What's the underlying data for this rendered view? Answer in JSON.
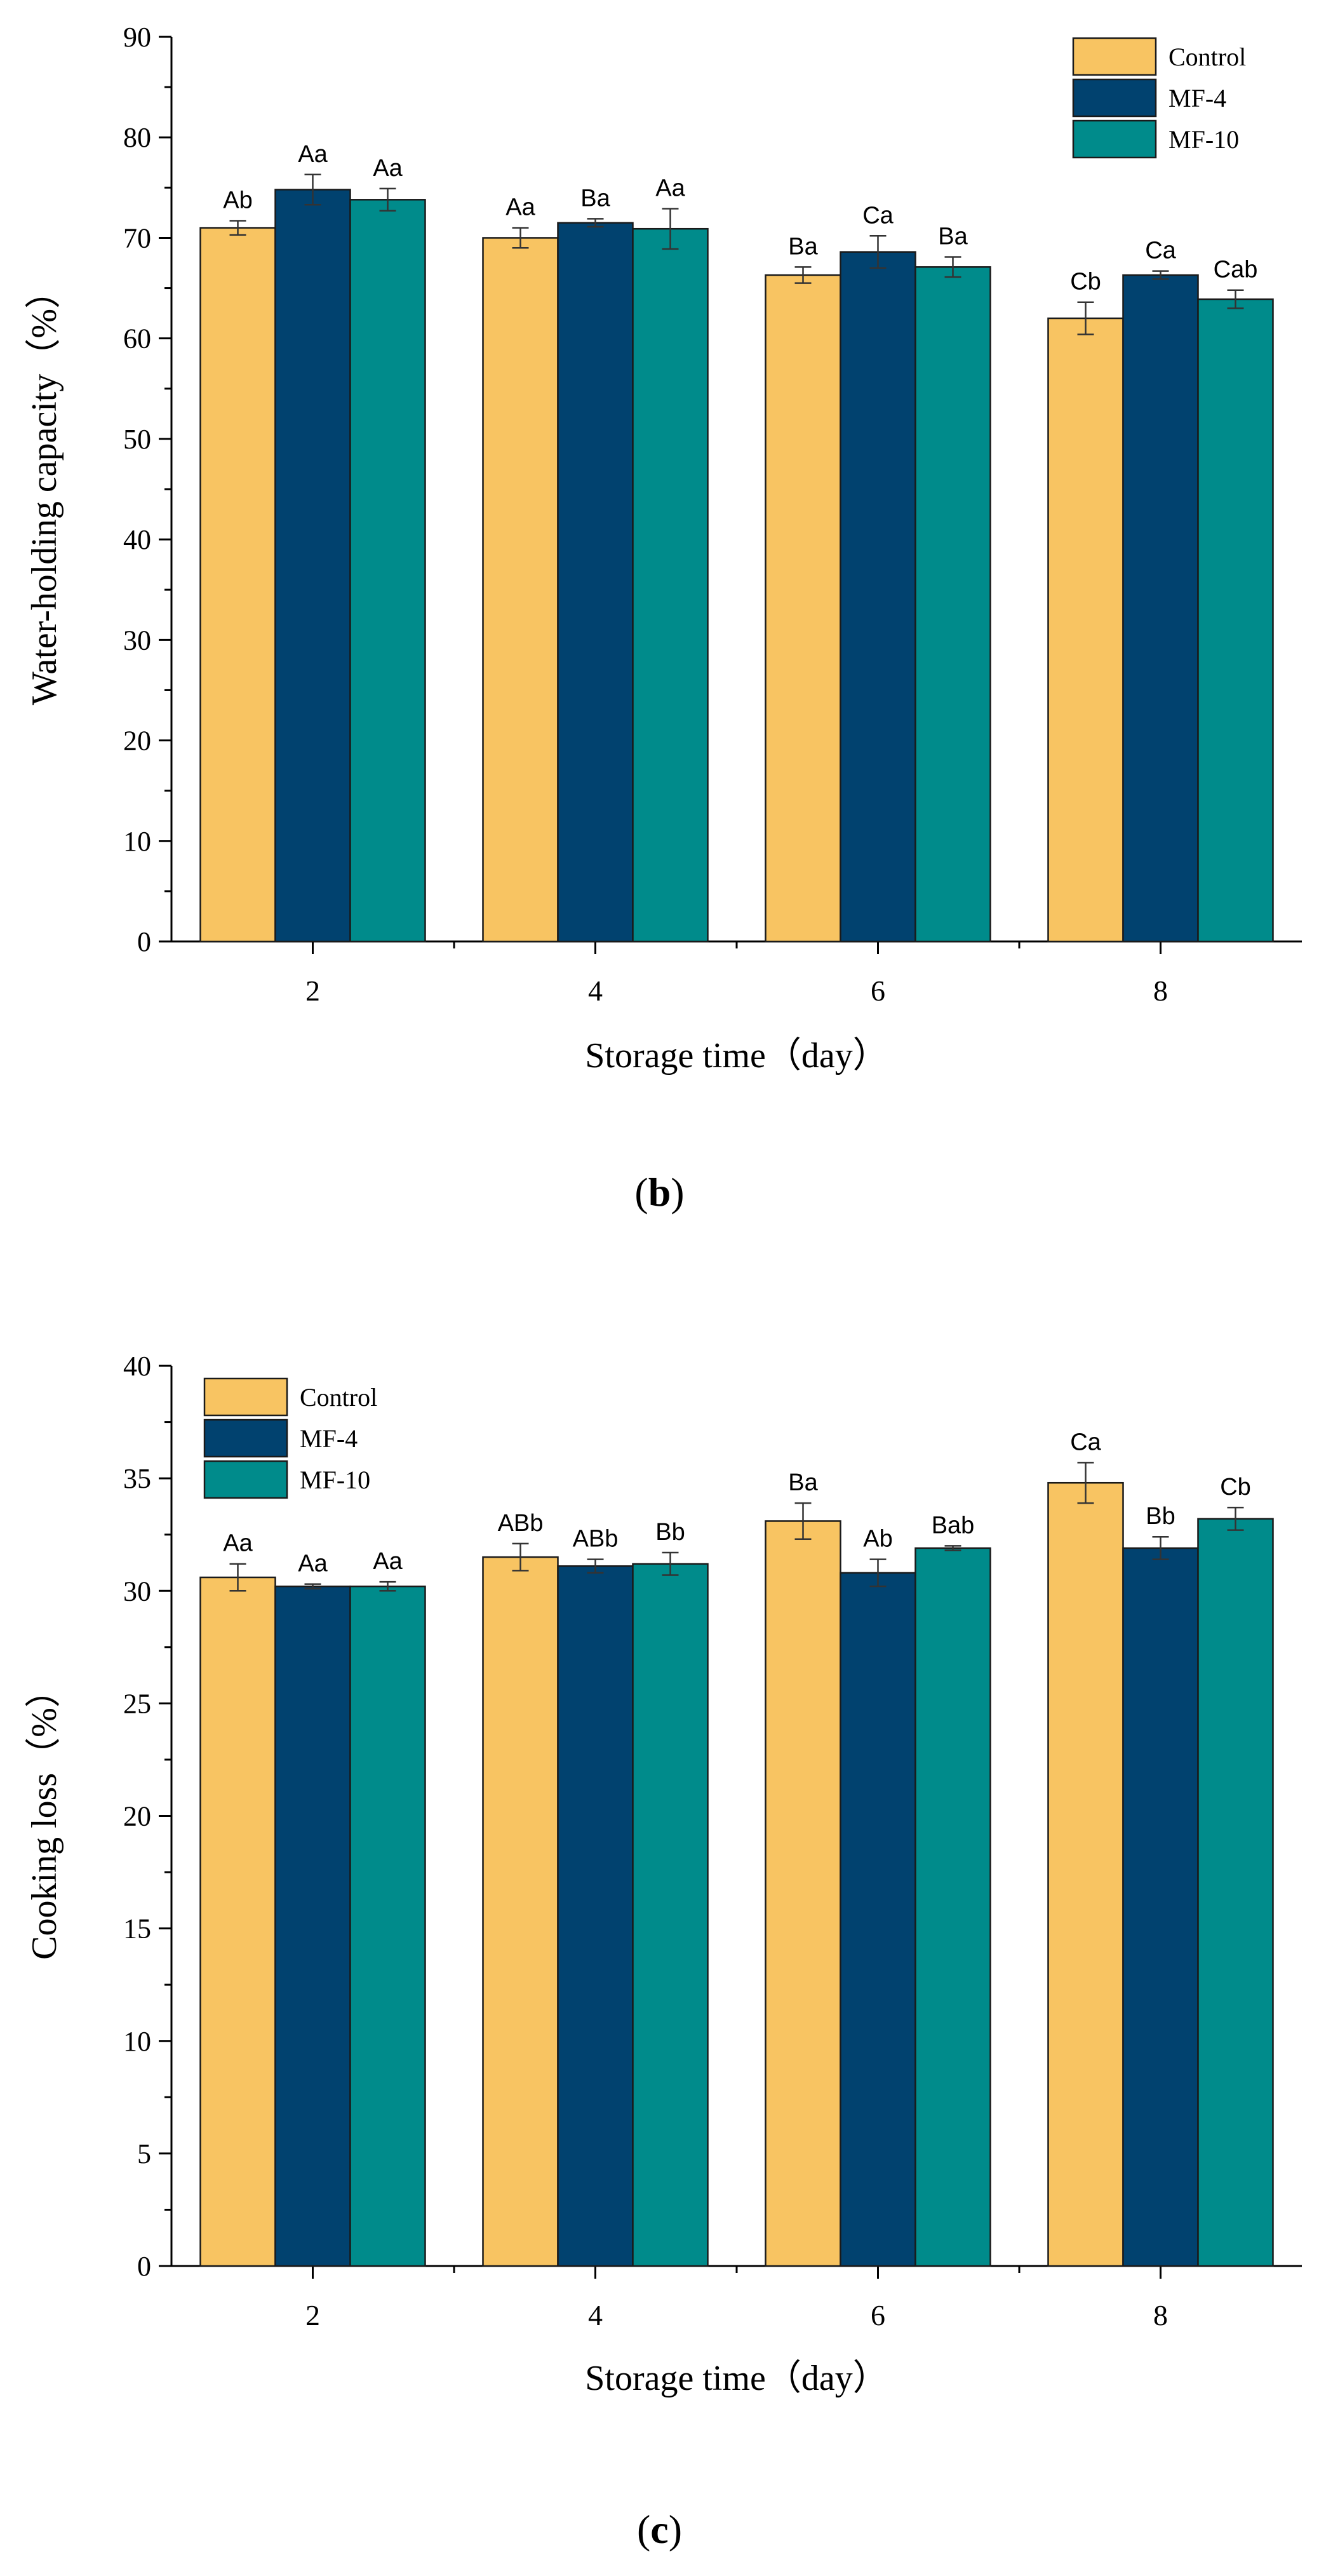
{
  "panels": [
    {
      "panel_label": "b",
      "chart_data": {
        "type": "bar",
        "title": "",
        "xlabel": "Storage time（day）",
        "ylabel": "Water-holding capacity（%）",
        "ylim": [
          0,
          90
        ],
        "yticks": [
          0,
          10,
          20,
          30,
          40,
          50,
          60,
          70,
          80,
          90
        ],
        "categories": [
          "2",
          "4",
          "6",
          "8"
        ],
        "legend_position": "top-right",
        "series": [
          {
            "name": "Control",
            "color": "#F8C462",
            "values": [
              71.0,
              70.0,
              66.3,
              62.0
            ],
            "errors": [
              0.7,
              1.0,
              0.8,
              1.6
            ],
            "letters": [
              "Ab",
              "Aa",
              "Ba",
              "Cb"
            ]
          },
          {
            "name": "MF-4",
            "color": "#01426F",
            "values": [
              74.8,
              71.5,
              68.6,
              66.3
            ],
            "errors": [
              1.5,
              0.4,
              1.6,
              0.4
            ],
            "letters": [
              "Aa",
              "Ba",
              "Ca",
              "Ca"
            ]
          },
          {
            "name": "MF-10",
            "color": "#008B8B",
            "values": [
              73.8,
              70.9,
              67.1,
              63.9
            ],
            "errors": [
              1.1,
              2.0,
              1.0,
              0.9
            ],
            "letters": [
              "Aa",
              "Aa",
              "Ba",
              "Cab"
            ]
          }
        ]
      }
    },
    {
      "panel_label": "c",
      "chart_data": {
        "type": "bar",
        "title": "",
        "xlabel": "Storage time（day）",
        "ylabel": "Cooking loss（%）",
        "ylim": [
          0,
          40
        ],
        "yticks": [
          0,
          5,
          10,
          15,
          20,
          25,
          30,
          35,
          40
        ],
        "categories": [
          "2",
          "4",
          "6",
          "8"
        ],
        "legend_position": "top-left",
        "series": [
          {
            "name": "Control",
            "color": "#F8C462",
            "values": [
              30.6,
              31.5,
              33.1,
              34.8
            ],
            "errors": [
              0.6,
              0.6,
              0.8,
              0.9
            ],
            "letters": [
              "Aa",
              "ABb",
              "Ba",
              "Ca"
            ]
          },
          {
            "name": "MF-4",
            "color": "#01426F",
            "values": [
              30.2,
              31.1,
              30.8,
              31.9
            ],
            "errors": [
              0.1,
              0.3,
              0.6,
              0.5
            ],
            "letters": [
              "Aa",
              "ABb",
              "Ab",
              "Bb"
            ]
          },
          {
            "name": "MF-10",
            "color": "#008B8B",
            "values": [
              30.2,
              31.2,
              31.9,
              33.2
            ],
            "errors": [
              0.2,
              0.5,
              0.1,
              0.5
            ],
            "letters": [
              "Aa",
              "Bb",
              "Bab",
              "Cb"
            ]
          }
        ]
      }
    }
  ]
}
